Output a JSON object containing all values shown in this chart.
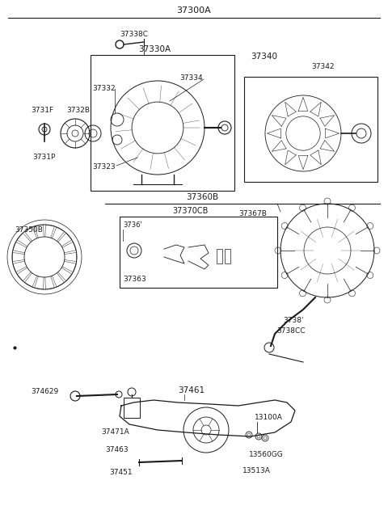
{
  "bg_color": "#f5f5f0",
  "line_color": "#1a1a1a",
  "title": "37300A",
  "figsize": [
    4.8,
    6.57
  ],
  "dpi": 100,
  "labels": {
    "title": "37300A",
    "s1_box": "37330A",
    "s1_bolt": "37338C",
    "s1_p1": "37332",
    "s1_p2": "37334",
    "s1_p3": "37323",
    "s1_left1": "3731F",
    "s1_left2": "3732B",
    "s1_left3": "3731P",
    "s2_box": "37340",
    "s2_p1": "37342",
    "s3_label": "37360B",
    "s3_box": "37370CB",
    "s3_p1": "37350B",
    "s3_p2": "37367B",
    "s3_p3": "3736'",
    "s3_p4": "37363",
    "s3_p5": "3738'",
    "s3_p6": "3738CC",
    "s4_p1": "374629",
    "s4_p2": "37461",
    "s4_p3": "37471A",
    "s4_p4": "37463",
    "s4_p5": "37451",
    "s4_p6": "13100A",
    "s4_p7": "13560GG",
    "s4_p8": "13513A"
  }
}
